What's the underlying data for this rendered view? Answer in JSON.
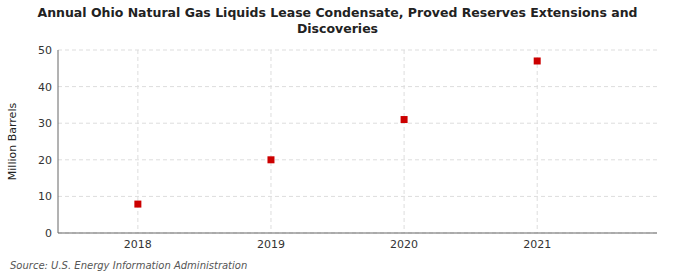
{
  "chart_data": {
    "type": "scatter",
    "title": "Annual Ohio Natural Gas Liquids Lease Condensate, Proved Reserves Extensions and\nDiscoveries",
    "y_label": "Million Barrels",
    "source": "Source: U.S. Energy Information Administration",
    "x": [
      2018,
      2019,
      2020,
      2021
    ],
    "values": [
      7.9,
      20.0,
      31.0,
      47.0
    ],
    "color": "#cc0000",
    "marker": "square",
    "xlim": [
      2017.4,
      2021.9
    ],
    "ylim": [
      0,
      50
    ],
    "xticks": [
      2018,
      2019,
      2020,
      2021
    ],
    "yticks": [
      0,
      10,
      20,
      30,
      40,
      50
    ],
    "grid": true
  }
}
